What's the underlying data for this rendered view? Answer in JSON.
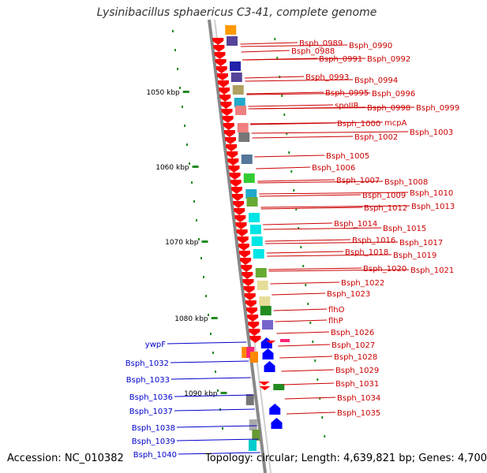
{
  "title": "Lysinibacillus sphaericus C3-41, complete genome",
  "footer": {
    "accession": "Accession: NC_010382",
    "summary": "Topology: circular; Length: 4,639,821 bp; Genes: 4,700"
  },
  "scale_ticks": [
    "1050 kbp",
    "1060 kbp",
    "1070 kbp",
    "1080 kbp",
    "1090 kbp"
  ],
  "colors": {
    "forward_gene": "#ff0000",
    "reverse_gene": "#0000ff",
    "label_forward": "#cc0000",
    "label_reverse": "#0000cc",
    "scale": "#228b22",
    "backbone": "#888888"
  },
  "right_labels": [
    "Bsph_0988",
    "Bsph_0989",
    "Bsph_0990",
    "Bsph_0991",
    "Bsph_0992",
    "Bsph_0993",
    "Bsph_0994",
    "Bsph_0995",
    "Bsph_0996",
    "spoIIR",
    "Bsph_0998",
    "Bsph_0999",
    "Bsph_1000",
    "mcpA",
    "Bsph_1002",
    "Bsph_1003",
    "Bsph_1005",
    "Bsph_1006",
    "Bsph_1007",
    "Bsph_1008",
    "Bsph_1009",
    "Bsph_1010",
    "Bsph_1012",
    "Bsph_1013",
    "Bsph_1014",
    "Bsph_1015",
    "Bsph_1016",
    "Bsph_1017",
    "Bsph_1018",
    "Bsph_1019",
    "Bsph_1020",
    "Bsph_1021",
    "Bsph_1022",
    "Bsph_1023",
    "flhO",
    "flhP",
    "Bsph_1026",
    "Bsph_1027",
    "Bsph_1028",
    "Bsph_1029",
    "Bsph_1031",
    "Bsph_1034",
    "Bsph_1035"
  ],
  "left_labels": [
    "ywpF",
    "Bsph_1032",
    "Bsph_1033",
    "Bsph_1036",
    "Bsph_1037",
    "Bsph_1038",
    "Bsph_1039",
    "Bsph_1040"
  ]
}
